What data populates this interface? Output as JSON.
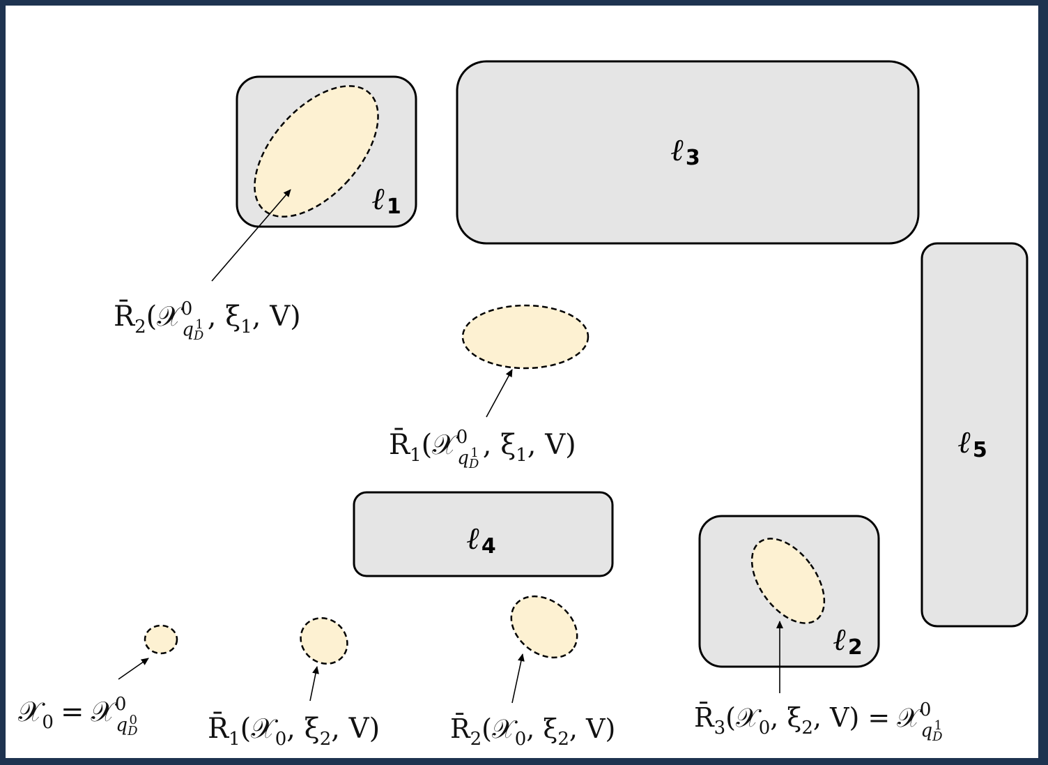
{
  "regions": [
    {
      "id": "l1",
      "letter": "ℓ",
      "index": "1"
    },
    {
      "id": "l2",
      "letter": "ℓ",
      "index": "2"
    },
    {
      "id": "l3",
      "letter": "ℓ",
      "index": "3"
    },
    {
      "id": "l4",
      "letter": "ℓ",
      "index": "4"
    },
    {
      "id": "l5",
      "letter": "ℓ",
      "index": "5"
    }
  ],
  "labels": {
    "x0": {
      "lhs": "𝒳",
      "lhs_sub": "0",
      "eq": "=",
      "rhs": "𝒳",
      "rhs_sup": "0",
      "rhs_sub": "q",
      "rhs_subsub": "D",
      "rhs_subsup": "0"
    },
    "r1_x0_xi2": {
      "op": "R̄",
      "op_sub": "1",
      "args": "(𝒳",
      "arg_sub": "0",
      "rest": ", ξ",
      "xi_sub": "2",
      "tail": ", V)"
    },
    "r2_x0_xi2": {
      "op": "R̄",
      "op_sub": "2",
      "args": "(𝒳",
      "arg_sub": "0",
      "rest": ", ξ",
      "xi_sub": "2",
      "tail": ", V)"
    },
    "r3_x0_xi2": {
      "op": "R̄",
      "op_sub": "3",
      "args": "(𝒳",
      "arg_sub": "0",
      "rest": ", ξ",
      "xi_sub": "2",
      "tail": ", V) =",
      "rhs": "𝒳",
      "rhs_sup": "0",
      "rhs_sub": "q",
      "rhs_subsub": "D",
      "rhs_subsup": "1"
    },
    "r1_xq_xi1": {
      "op": "R̄",
      "op_sub": "1",
      "args": "(𝒳",
      "arg_sup": "0",
      "arg_sub": "q",
      "arg_subsub": "D",
      "arg_subsup": "1",
      "rest": ", ξ",
      "xi_sub": "1",
      "tail": ", V)"
    },
    "r2_xq_xi1": {
      "op": "R̄",
      "op_sub": "2",
      "args": "(𝒳",
      "arg_sup": "0",
      "arg_sub": "q",
      "arg_subsub": "D",
      "arg_subsup": "1",
      "rest": ", ξ",
      "xi_sub": "1",
      "tail": ", V)"
    }
  },
  "colors": {
    "border": "#1e3350",
    "region_fill": "#e5e5e5",
    "reach_fill": "#fdf1d2"
  }
}
